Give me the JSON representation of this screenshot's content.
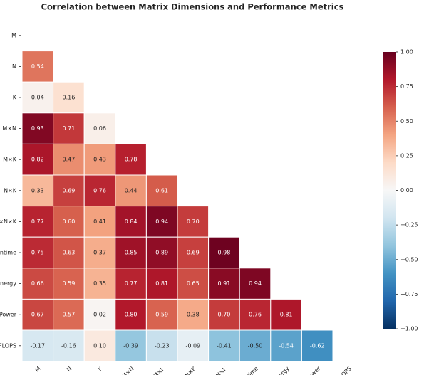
{
  "chart_data": {
    "type": "heatmap",
    "title": "Correlation between Matrix Dimensions and Performance Metrics",
    "labels": [
      "M",
      "N",
      "K",
      "M×N",
      "M×K",
      "N×K",
      "M×N×K",
      "Runtime",
      "Energy",
      "Power",
      "GFLOPS"
    ],
    "values": [
      [],
      [
        0.54
      ],
      [
        0.04,
        0.16
      ],
      [
        0.93,
        0.71,
        0.06
      ],
      [
        0.82,
        0.47,
        0.43,
        0.78
      ],
      [
        0.33,
        0.69,
        0.76,
        0.44,
        0.61
      ],
      [
        0.77,
        0.6,
        0.41,
        0.84,
        0.94,
        0.7
      ],
      [
        0.75,
        0.63,
        0.37,
        0.85,
        0.89,
        0.69,
        0.98
      ],
      [
        0.66,
        0.59,
        0.35,
        0.77,
        0.81,
        0.65,
        0.91,
        0.94
      ],
      [
        0.67,
        0.57,
        0.02,
        0.8,
        0.59,
        0.38,
        0.7,
        0.76,
        0.81
      ],
      [
        -0.17,
        -0.16,
        0.1,
        -0.39,
        -0.23,
        -0.09,
        -0.41,
        -0.5,
        -0.54,
        -0.62
      ]
    ],
    "value_labels": [
      [],
      [
        "0.54"
      ],
      [
        "0.04",
        "0.16"
      ],
      [
        "0.93",
        "0.71",
        "0.06"
      ],
      [
        "0.82",
        "0.47",
        "0.43",
        "0.78"
      ],
      [
        "0.33",
        "0.69",
        "0.76",
        "0.44",
        "0.61"
      ],
      [
        "0.77",
        "0.60",
        "0.41",
        "0.84",
        "0.94",
        "0.70"
      ],
      [
        "0.75",
        "0.63",
        "0.37",
        "0.85",
        "0.89",
        "0.69",
        "0.98"
      ],
      [
        "0.66",
        "0.59",
        "0.35",
        "0.77",
        "0.81",
        "0.65",
        "0.91",
        "0.94"
      ],
      [
        "0.67",
        "0.57",
        "0.02",
        "0.80",
        "0.59",
        "0.38",
        "0.70",
        "0.76",
        "0.81"
      ],
      [
        "-0.17",
        "-0.16",
        "0.10",
        "-0.39",
        "-0.23",
        "-0.09",
        "-0.41",
        "-0.50",
        "-0.54",
        "-0.62"
      ]
    ],
    "colormap": [
      "#053061",
      "#2166ac",
      "#4393c3",
      "#92c5de",
      "#d1e5f0",
      "#f7f7f7",
      "#fddbc7",
      "#f4a582",
      "#d6604d",
      "#b2182b",
      "#67001f"
    ],
    "clim": [
      -1,
      1
    ],
    "cticks": [
      {
        "value": -1,
        "label": "−1.00"
      },
      {
        "value": -0.75,
        "label": "−0.75"
      },
      {
        "value": -0.5,
        "label": "−0.50"
      },
      {
        "value": -0.25,
        "label": "−0.25"
      },
      {
        "value": 0,
        "label": "0.00"
      },
      {
        "value": 0.25,
        "label": "0.25"
      },
      {
        "value": 0.5,
        "label": "0.50"
      },
      {
        "value": 0.75,
        "label": "0.75"
      },
      {
        "value": 1,
        "label": "1.00"
      }
    ]
  }
}
